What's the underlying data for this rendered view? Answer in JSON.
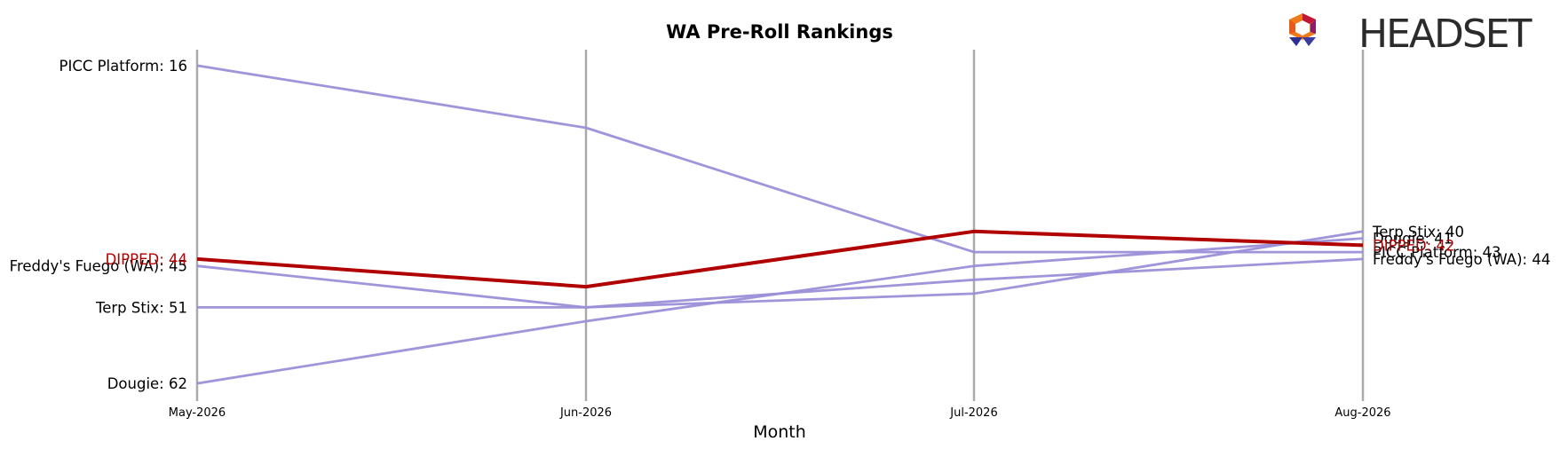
{
  "brand": {
    "name": "HEADSET"
  },
  "colors": {
    "highlight": "#b00000",
    "others": "#9b8fd8",
    "axis": "#aaaaaa"
  },
  "chart_data": {
    "type": "line",
    "title": "WA Pre-Roll Rankings",
    "xlabel": "Month",
    "ylabel": "",
    "y_inverted": true,
    "ylim": [
      64.3,
      13.7
    ],
    "grid": false,
    "legend": "none",
    "categories": [
      "May-2026",
      "Jun-2026",
      "Jul-2026",
      "Aug-2026"
    ],
    "series": [
      {
        "name": "PICC Platform",
        "values": [
          16,
          25,
          43,
          43
        ],
        "highlight": false,
        "start_label": "PICC Platform: 16",
        "end_label": "PICC Platform: 43"
      },
      {
        "name": "Freddy's Fuego (WA)",
        "values": [
          45,
          51,
          47,
          44
        ],
        "highlight": false,
        "start_label": "Freddy's Fuego (WA): 45",
        "end_label": "Freddy's Fuego (WA): 44"
      },
      {
        "name": "Terp Stix",
        "values": [
          51,
          51,
          49,
          40
        ],
        "highlight": false,
        "start_label": "Terp Stix: 51",
        "end_label": "Terp Stix: 40"
      },
      {
        "name": "Dougie",
        "values": [
          62,
          53,
          45,
          41
        ],
        "highlight": false,
        "start_label": "Dougie: 62",
        "end_label": "Dougie: 41"
      },
      {
        "name": "DIPPED",
        "values": [
          44,
          48,
          40,
          42
        ],
        "highlight": true,
        "start_label": "DIPPED: 44",
        "end_label": "DIPPED: 42"
      }
    ]
  }
}
